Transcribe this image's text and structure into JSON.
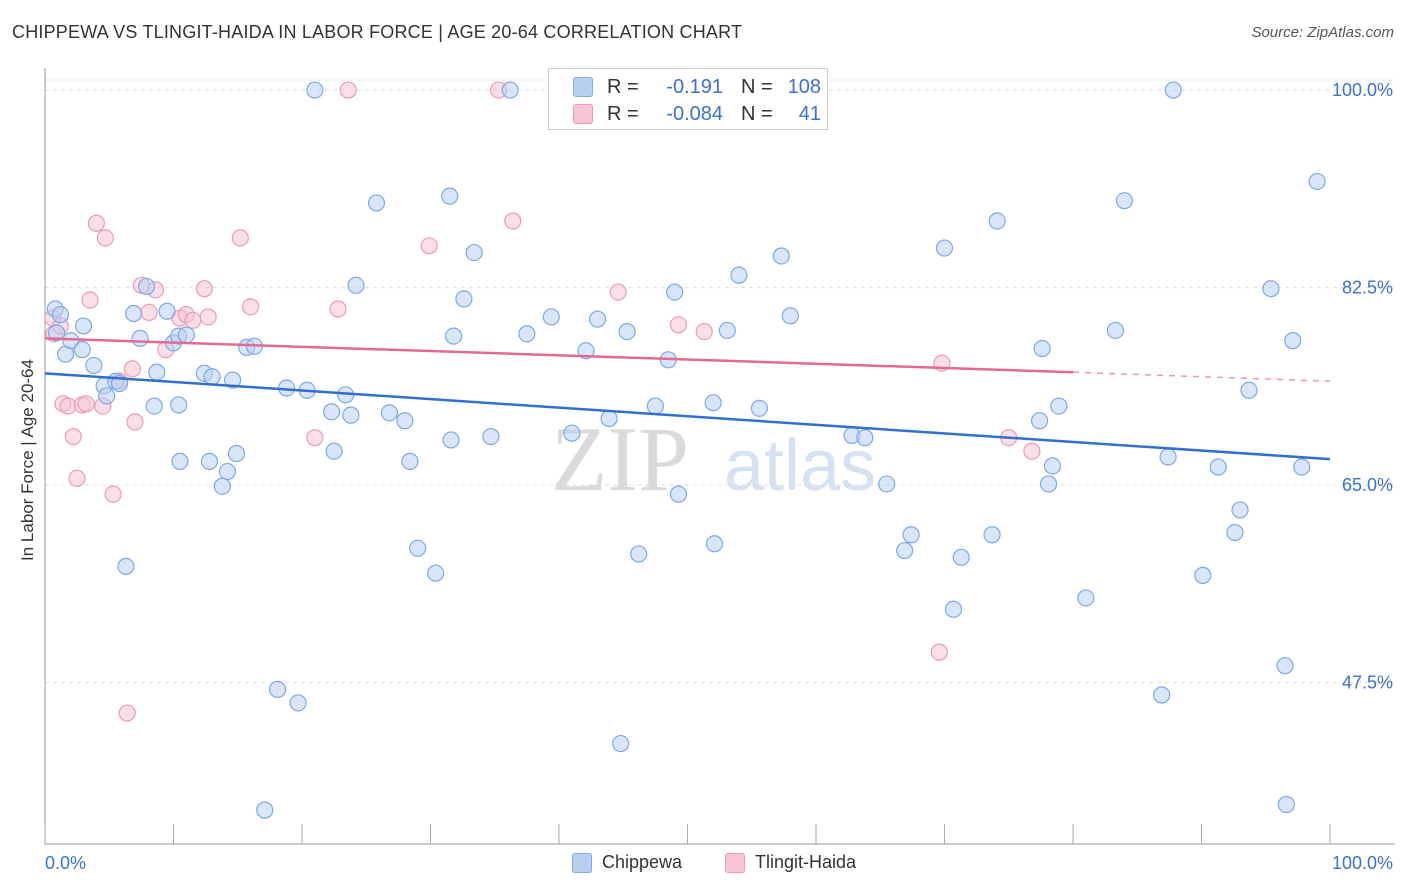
{
  "title": "CHIPPEWA VS TLINGIT-HAIDA IN LABOR FORCE | AGE 20-64 CORRELATION CHART",
  "source": "Source: ZipAtlas.com",
  "watermark": {
    "zip": "ZIP",
    "atlas": "atlas"
  },
  "legend_box": {
    "rows": [
      {
        "r_label": "R =",
        "r_value": "-0.191",
        "n_label": "N =",
        "n_value": "108"
      },
      {
        "r_label": "R =",
        "r_value": "-0.084",
        "n_label": "N =",
        "n_value": "41"
      }
    ]
  },
  "legend_bottom": {
    "items": [
      "Chippewa",
      "Tlingit-Haida"
    ]
  },
  "colors": {
    "chippewa_fill": "#b9d0f3",
    "chippewa_stroke": "#7ea8e6",
    "chippewa_line": "#2f6fd0",
    "tlingit_fill": "#f7c5d5",
    "tlingit_stroke": "#ec9ab5",
    "tlingit_line": "#e46a94",
    "axis_text": "#3b72c8",
    "grid": "#dddddd"
  },
  "chart_data": {
    "type": "scatter",
    "title": "CHIPPEWA VS TLINGIT-HAIDA IN LABOR FORCE | AGE 20-64 CORRELATION CHART",
    "xlabel": "",
    "ylabel": "In Labor Force | Age 20-64",
    "xlim": [
      0,
      100
    ],
    "ylim": [
      33.2,
      101.6
    ],
    "x_tick_labels": [
      "0.0%",
      "100.0%"
    ],
    "y_ticks": [
      47.5,
      65.0,
      82.5,
      100.0
    ],
    "y_tick_labels": [
      "47.5%",
      "65.0%",
      "82.5%",
      "100.0%"
    ],
    "grid": true,
    "legend_placement": "top-center",
    "series": [
      {
        "name": "Chippewa",
        "trend": {
          "x": [
            0,
            100
          ],
          "y": [
            74.9,
            67.3
          ]
        },
        "points": [
          [
            0.8,
            80.6
          ],
          [
            0.9,
            78.5
          ],
          [
            1.2,
            80.1
          ],
          [
            1.6,
            76.6
          ],
          [
            2.0,
            77.8
          ],
          [
            2.9,
            77.0
          ],
          [
            3.0,
            79.1
          ],
          [
            3.8,
            75.6
          ],
          [
            4.6,
            73.8
          ],
          [
            4.8,
            72.9
          ],
          [
            5.5,
            74.2
          ],
          [
            5.8,
            74.0
          ],
          [
            6.3,
            57.8
          ],
          [
            6.9,
            80.2
          ],
          [
            7.4,
            78.0
          ],
          [
            7.9,
            82.6
          ],
          [
            8.5,
            72.0
          ],
          [
            8.7,
            75.0
          ],
          [
            9.5,
            80.4
          ],
          [
            10.0,
            77.6
          ],
          [
            10.4,
            72.1
          ],
          [
            10.4,
            78.2
          ],
          [
            10.5,
            67.1
          ],
          [
            11.0,
            78.3
          ],
          [
            12.4,
            74.9
          ],
          [
            12.8,
            67.1
          ],
          [
            13.0,
            74.6
          ],
          [
            13.8,
            64.9
          ],
          [
            14.2,
            66.2
          ],
          [
            14.6,
            74.3
          ],
          [
            14.9,
            67.8
          ],
          [
            15.7,
            77.2
          ],
          [
            16.3,
            77.3
          ],
          [
            17.1,
            36.2
          ],
          [
            18.1,
            46.9
          ],
          [
            18.8,
            73.6
          ],
          [
            19.7,
            45.7
          ],
          [
            20.4,
            73.4
          ],
          [
            21.0,
            100.0
          ],
          [
            22.3,
            71.5
          ],
          [
            22.5,
            68.0
          ],
          [
            23.4,
            73.0
          ],
          [
            23.8,
            71.2
          ],
          [
            24.2,
            82.7
          ],
          [
            25.8,
            90.0
          ],
          [
            26.8,
            71.4
          ],
          [
            28.0,
            70.7
          ],
          [
            28.4,
            67.1
          ],
          [
            29.0,
            59.4
          ],
          [
            30.4,
            57.2
          ],
          [
            31.5,
            90.6
          ],
          [
            31.6,
            69.0
          ],
          [
            31.8,
            78.2
          ],
          [
            32.6,
            81.5
          ],
          [
            33.4,
            85.6
          ],
          [
            34.7,
            69.3
          ],
          [
            36.2,
            100.0
          ],
          [
            37.5,
            78.4
          ],
          [
            39.4,
            79.9
          ],
          [
            41.0,
            69.6
          ],
          [
            42.1,
            76.9
          ],
          [
            43.0,
            79.7
          ],
          [
            43.9,
            70.9
          ],
          [
            44.8,
            42.1
          ],
          [
            45.3,
            78.6
          ],
          [
            46.2,
            58.9
          ],
          [
            47.5,
            72.0
          ],
          [
            48.5,
            76.1
          ],
          [
            49.0,
            82.1
          ],
          [
            49.3,
            64.2
          ],
          [
            52.0,
            72.3
          ],
          [
            52.1,
            59.8
          ],
          [
            53.1,
            78.7
          ],
          [
            54.0,
            83.6
          ],
          [
            55.6,
            71.8
          ],
          [
            57.3,
            85.3
          ],
          [
            58.0,
            80.0
          ],
          [
            62.8,
            69.4
          ],
          [
            63.8,
            69.2
          ],
          [
            65.5,
            65.1
          ],
          [
            66.9,
            59.2
          ],
          [
            67.4,
            60.6
          ],
          [
            70.0,
            86.0
          ],
          [
            70.7,
            54.0
          ],
          [
            71.3,
            58.6
          ],
          [
            73.7,
            60.6
          ],
          [
            74.1,
            88.4
          ],
          [
            77.4,
            70.7
          ],
          [
            77.6,
            77.1
          ],
          [
            78.1,
            65.1
          ],
          [
            78.4,
            66.7
          ],
          [
            78.9,
            72.0
          ],
          [
            81.0,
            55.0
          ],
          [
            83.3,
            78.7
          ],
          [
            84.0,
            90.2
          ],
          [
            86.9,
            46.4
          ],
          [
            87.4,
            67.5
          ],
          [
            87.8,
            100.0
          ],
          [
            90.1,
            57.0
          ],
          [
            91.3,
            66.6
          ],
          [
            92.6,
            60.8
          ],
          [
            93.0,
            62.8
          ],
          [
            93.7,
            73.4
          ],
          [
            95.4,
            82.4
          ],
          [
            96.5,
            49.0
          ],
          [
            96.6,
            36.7
          ],
          [
            97.1,
            77.8
          ],
          [
            97.8,
            66.6
          ],
          [
            99.0,
            91.9
          ]
        ]
      },
      {
        "name": "Tlingit-Haida",
        "trend": {
          "x": [
            0,
            80
          ],
          "y": [
            78.0,
            75.0
          ]
        },
        "trend_dashed": {
          "x": [
            80,
            100
          ],
          "y": [
            75.0,
            74.2
          ]
        },
        "points": [
          [
            0.6,
            79.8
          ],
          [
            0.7,
            78.4
          ],
          [
            1.2,
            79.1
          ],
          [
            1.4,
            72.2
          ],
          [
            1.8,
            72.0
          ],
          [
            2.2,
            69.3
          ],
          [
            2.5,
            65.6
          ],
          [
            2.9,
            72.1
          ],
          [
            3.2,
            72.2
          ],
          [
            3.5,
            81.4
          ],
          [
            4.0,
            88.2
          ],
          [
            4.5,
            72.0
          ],
          [
            4.7,
            86.9
          ],
          [
            5.3,
            64.2
          ],
          [
            5.8,
            74.2
          ],
          [
            6.4,
            44.8
          ],
          [
            6.8,
            75.3
          ],
          [
            7.0,
            70.6
          ],
          [
            7.5,
            82.7
          ],
          [
            8.1,
            80.3
          ],
          [
            8.6,
            82.3
          ],
          [
            9.4,
            77.0
          ],
          [
            10.5,
            79.8
          ],
          [
            11.0,
            80.1
          ],
          [
            11.5,
            79.6
          ],
          [
            12.4,
            82.4
          ],
          [
            12.7,
            79.9
          ],
          [
            15.2,
            86.9
          ],
          [
            16.0,
            80.8
          ],
          [
            21.0,
            69.2
          ],
          [
            22.8,
            80.6
          ],
          [
            23.6,
            100.0
          ],
          [
            29.9,
            86.2
          ],
          [
            35.3,
            100.0
          ],
          [
            36.4,
            88.4
          ],
          [
            44.6,
            82.1
          ],
          [
            49.3,
            79.2
          ],
          [
            51.3,
            78.6
          ],
          [
            69.6,
            50.2
          ],
          [
            69.8,
            75.8
          ],
          [
            75.0,
            69.2
          ],
          [
            76.8,
            68.0
          ]
        ]
      }
    ]
  }
}
